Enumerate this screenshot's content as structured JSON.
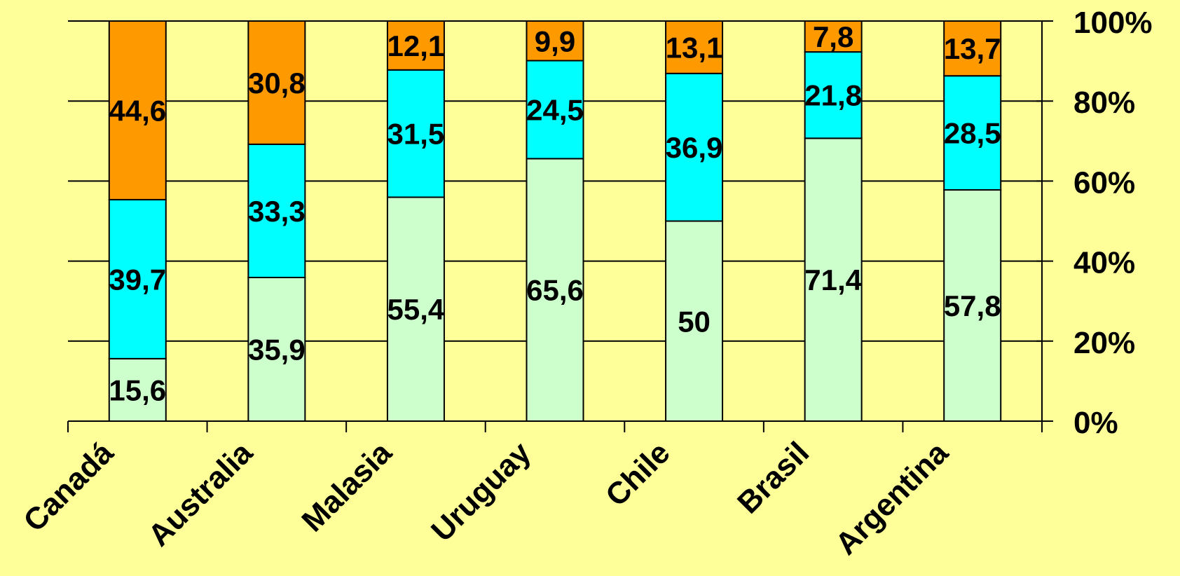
{
  "chart_data": {
    "type": "bar",
    "stacked": "percent",
    "categories": [
      "Canadá",
      "Australia",
      "Malasia",
      "Uruguay",
      "Chile",
      "Brasil",
      "Argentina"
    ],
    "series": [
      {
        "values": [
          15.6,
          35.9,
          55.4,
          65.6,
          50,
          71.4,
          57.8
        ],
        "labels": [
          "15,6",
          "35,9",
          "55,4",
          "65,6",
          "50",
          "71,4",
          "57,8"
        ],
        "color": "#CCFFCC"
      },
      {
        "values": [
          39.7,
          33.3,
          31.5,
          24.5,
          36.9,
          21.8,
          28.5
        ],
        "labels": [
          "39,7",
          "33,3",
          "31,5",
          "24,5",
          "36,9",
          "21,8",
          "28,5"
        ],
        "color": "#00FFFF"
      },
      {
        "values": [
          44.6,
          30.8,
          12.1,
          9.9,
          13.1,
          7.8,
          13.7
        ],
        "labels": [
          "44,6",
          "30,8",
          "12,1",
          "9,9",
          "13,1",
          "7,8",
          "13,7"
        ],
        "color": "#FF9900"
      }
    ],
    "y_axis": {
      "position": "right",
      "ylim": [
        0,
        100
      ],
      "ticks": [
        0,
        20,
        40,
        60,
        80,
        100
      ],
      "tick_labels": [
        "0%",
        "20%",
        "40%",
        "60%",
        "80%",
        "100%"
      ]
    },
    "grid": true,
    "legend": "none",
    "xlabel": "",
    "ylabel": "",
    "background_color": "#FFFF99"
  }
}
